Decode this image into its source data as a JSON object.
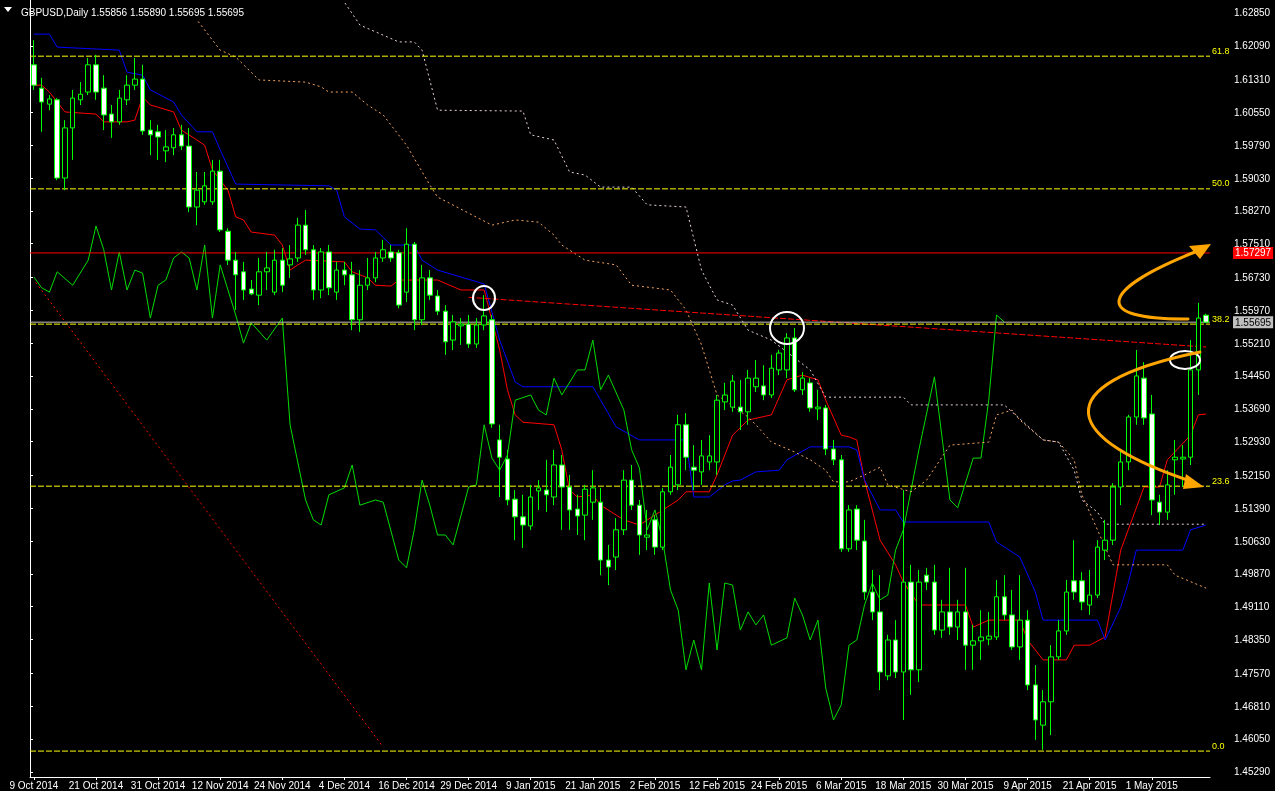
{
  "chart_data": {
    "type": "candlestick",
    "title": "GBPUSD,Daily 1.55856 1.55890 1.55695 1.55695",
    "color": "#00ff00",
    "marker": "none",
    "grid": false,
    "categories": [
      "9 Oct 2014",
      null,
      null,
      null,
      null,
      null,
      null,
      null,
      "21 Oct 2014",
      null,
      null,
      null,
      null,
      null,
      null,
      null,
      "31 Oct 2014",
      null,
      null,
      null,
      null,
      null,
      null,
      null,
      "12 Nov 2014",
      null,
      null,
      null,
      null,
      null,
      null,
      null,
      "24 Nov 2014",
      null,
      null,
      null,
      null,
      null,
      null,
      null,
      "4 Dec 2014",
      null,
      null,
      null,
      null,
      null,
      null,
      null,
      "16 Dec 2014",
      null,
      null,
      null,
      null,
      null,
      null,
      null,
      "29 Dec 2014",
      null,
      null,
      null,
      null,
      null,
      null,
      null,
      "9 Jan 2015",
      null,
      null,
      null,
      null,
      null,
      null,
      null,
      "21 Jan 2015",
      null,
      null,
      null,
      null,
      null,
      null,
      null,
      "2 Feb 2015",
      null,
      null,
      null,
      null,
      null,
      null,
      null,
      "12 Feb 2015",
      null,
      null,
      null,
      null,
      null,
      null,
      null,
      "24 Feb 2015",
      null,
      null,
      null,
      null,
      null,
      null,
      null,
      "6 Mar 2015",
      null,
      null,
      null,
      null,
      null,
      null,
      null,
      "18 Mar 2015",
      null,
      null,
      null,
      null,
      null,
      null,
      null,
      "30 Mar 2015",
      null,
      null,
      null,
      null,
      null,
      null,
      null,
      "9 Apr 2015",
      null,
      null,
      null,
      null,
      null,
      null,
      null,
      "21 Apr 2015",
      null,
      null,
      null,
      null,
      null,
      null,
      null,
      "1 May 2015",
      null,
      null,
      null,
      null,
      null,
      null,
      null
    ],
    "ohlc": [
      [
        1.6165,
        1.6222,
        1.6107,
        1.6118
      ],
      [
        1.6111,
        1.6135,
        1.601,
        1.6079
      ],
      [
        1.6074,
        1.6095,
        1.606,
        1.6086
      ],
      [
        1.6084,
        1.6088,
        1.5898,
        1.5903
      ],
      [
        1.5903,
        1.6037,
        1.5875,
        1.6019
      ],
      [
        1.6019,
        1.6107,
        1.5945,
        1.6088
      ],
      [
        1.6084,
        1.6125,
        1.6072,
        1.6097
      ],
      [
        1.6102,
        1.6181,
        1.6095,
        1.6165
      ],
      [
        1.6165,
        1.6188,
        1.6084,
        1.6102
      ],
      [
        1.6111,
        1.6141,
        1.6014,
        1.6049
      ],
      [
        1.6051,
        1.6072,
        1.5996,
        1.6033
      ],
      [
        1.6033,
        1.6107,
        1.6026,
        1.6088
      ],
      [
        1.6084,
        1.6141,
        1.6072,
        1.6118
      ],
      [
        1.6118,
        1.6181,
        1.6107,
        1.6132
      ],
      [
        1.6132,
        1.6165,
        1.6003,
        1.6012
      ],
      [
        1.6014,
        1.6037,
        1.5956,
        1.6003
      ],
      [
        1.601,
        1.6026,
        1.5945,
        1.5998
      ],
      [
        1.5966,
        1.6014,
        1.594,
        1.5975
      ],
      [
        1.5973,
        1.6019,
        1.5956,
        1.6003
      ],
      [
        1.6003,
        1.6026,
        1.5968,
        1.5977
      ],
      [
        1.5977,
        1.6019,
        1.5824,
        1.5836
      ],
      [
        1.5836,
        1.5917,
        1.5794,
        1.5875
      ],
      [
        1.5848,
        1.5917,
        1.5841,
        1.5885
      ],
      [
        1.5848,
        1.5945,
        1.5841,
        1.5919
      ],
      [
        1.5919,
        1.5945,
        1.5778,
        1.5783
      ],
      [
        1.578,
        1.5787,
        1.5702,
        1.5713
      ],
      [
        1.5713,
        1.5732,
        1.5598,
        1.5679
      ],
      [
        1.5686,
        1.5709,
        1.5621,
        1.5644
      ],
      [
        1.5646,
        1.5667,
        1.5632,
        1.5635
      ],
      [
        1.5632,
        1.5718,
        1.5609,
        1.5686
      ],
      [
        1.5686,
        1.5732,
        1.5644,
        1.5695
      ],
      [
        1.5639,
        1.5737,
        1.5632,
        1.5713
      ],
      [
        1.5713,
        1.5741,
        1.5639,
        1.5655
      ],
      [
        1.5702,
        1.5748,
        1.5672,
        1.5716
      ],
      [
        1.5718,
        1.5811,
        1.5709,
        1.5794
      ],
      [
        1.5794,
        1.5829,
        1.5725,
        1.5737
      ],
      [
        1.5737,
        1.5748,
        1.5621,
        1.5644
      ],
      [
        1.5644,
        1.5741,
        1.5625,
        1.5732
      ],
      [
        1.5732,
        1.5748,
        1.5632,
        1.5649
      ],
      [
        1.5639,
        1.5709,
        1.5621,
        1.569
      ],
      [
        1.569,
        1.5709,
        1.5655,
        1.5679
      ],
      [
        1.5679,
        1.5709,
        1.5551,
        1.5575
      ],
      [
        1.5575,
        1.569,
        1.5547,
        1.5655
      ],
      [
        1.5655,
        1.5718,
        1.5644,
        1.5672
      ],
      [
        1.5672,
        1.5732,
        1.5662,
        1.5718
      ],
      [
        1.5718,
        1.576,
        1.5709,
        1.5737
      ],
      [
        1.5732,
        1.5748,
        1.5709,
        1.5718
      ],
      [
        1.573,
        1.5737,
        1.5602,
        1.5609
      ],
      [
        1.5639,
        1.5787,
        1.5616,
        1.575
      ],
      [
        1.575,
        1.5755,
        1.5551,
        1.5575
      ],
      [
        1.5575,
        1.5702,
        1.5563,
        1.5672
      ],
      [
        1.5672,
        1.569,
        1.5621,
        1.5632
      ],
      [
        1.563,
        1.5644,
        1.5586,
        1.5595
      ],
      [
        1.5595,
        1.5609,
        1.5494,
        1.5524
      ],
      [
        1.5528,
        1.5586,
        1.5505,
        1.557
      ],
      [
        1.5561,
        1.5579,
        1.5517,
        1.5565
      ],
      [
        1.5565,
        1.5586,
        1.551,
        1.5519
      ],
      [
        1.5519,
        1.5579,
        1.551,
        1.5563
      ],
      [
        1.5563,
        1.5632,
        1.5551,
        1.5584
      ],
      [
        1.5575,
        1.5586,
        1.5325,
        1.5334
      ],
      [
        1.5297,
        1.5332,
        1.5165,
        1.5257
      ],
      [
        1.5253,
        1.5274,
        1.5146,
        1.5158
      ],
      [
        1.516,
        1.5181,
        1.5065,
        1.5119
      ],
      [
        1.5119,
        1.517,
        1.5047,
        1.51
      ],
      [
        1.5098,
        1.5193,
        1.5089,
        1.5165
      ],
      [
        1.5179,
        1.5204,
        1.5135,
        1.5186
      ],
      [
        1.5181,
        1.5251,
        1.513,
        1.517
      ],
      [
        1.5165,
        1.5274,
        1.5146,
        1.5239
      ],
      [
        1.5239,
        1.5262,
        1.5089,
        1.5188
      ],
      [
        1.5188,
        1.5216,
        1.5089,
        1.5135
      ],
      [
        1.5137,
        1.517,
        1.5077,
        1.5121
      ],
      [
        1.5123,
        1.5193,
        1.5065,
        1.5183
      ],
      [
        1.5153,
        1.5227,
        1.5112,
        1.5186
      ],
      [
        1.5153,
        1.5186,
        1.4984,
        1.5019
      ],
      [
        1.5019,
        1.5054,
        1.4961,
        1.5003
      ],
      [
        1.5026,
        1.5116,
        1.4996,
        1.5089
      ],
      [
        1.5089,
        1.5227,
        1.5077,
        1.5204
      ],
      [
        1.5204,
        1.5239,
        1.5135,
        1.5146
      ],
      [
        1.5146,
        1.5158,
        1.5031,
        1.5077
      ],
      [
        1.5072,
        1.5135,
        1.5042,
        1.5077
      ],
      [
        1.5112,
        1.5123,
        1.5031,
        1.5049
      ],
      [
        1.5049,
        1.5186,
        1.5042,
        1.5177
      ],
      [
        1.5177,
        1.5262,
        1.517,
        1.5234
      ],
      [
        1.5193,
        1.5355,
        1.5181,
        1.5332
      ],
      [
        1.5332,
        1.5359,
        1.5227,
        1.5257
      ],
      [
        1.5234,
        1.5285,
        1.5181,
        1.5227
      ],
      [
        1.5223,
        1.5297,
        1.5193,
        1.526
      ],
      [
        1.5246,
        1.5308,
        1.5227,
        1.526
      ],
      [
        1.5246,
        1.5401,
        1.5216,
        1.5389
      ],
      [
        1.5385,
        1.5429,
        1.5366,
        1.5401
      ],
      [
        1.5373,
        1.5447,
        1.5362,
        1.5433
      ],
      [
        1.5373,
        1.5436,
        1.532,
        1.5362
      ],
      [
        1.5362,
        1.5459,
        1.5332,
        1.544
      ],
      [
        1.542,
        1.5482,
        1.5408,
        1.544
      ],
      [
        1.5422,
        1.547,
        1.5389,
        1.5401
      ],
      [
        1.5401,
        1.5494,
        1.5394,
        1.5463
      ],
      [
        1.5459,
        1.5505,
        1.5447,
        1.5498
      ],
      [
        1.5459,
        1.5544,
        1.544,
        1.5533
      ],
      [
        1.5533,
        1.5556,
        1.5408,
        1.5413
      ],
      [
        1.5413,
        1.5454,
        1.5401,
        1.544
      ],
      [
        1.5429,
        1.544,
        1.5362,
        1.5371
      ],
      [
        1.5369,
        1.5413,
        1.5343,
        1.5373
      ],
      [
        1.5371,
        1.5378,
        1.5262,
        1.5276
      ],
      [
        1.5276,
        1.5297,
        1.5239,
        1.5251
      ],
      [
        1.5251,
        1.5262,
        1.5038,
        1.5045
      ],
      [
        1.5045,
        1.5146,
        1.5038,
        1.5135
      ],
      [
        1.5137,
        1.5146,
        1.5042,
        1.5065
      ],
      [
        1.5063,
        1.5112,
        1.4927,
        1.4945
      ],
      [
        1.4945,
        1.4996,
        1.488,
        1.4899
      ],
      [
        1.4899,
        1.4984,
        1.4718,
        1.476
      ],
      [
        1.4751,
        1.4846,
        1.4741,
        1.4834
      ],
      [
        1.4834,
        1.488,
        1.4746,
        1.476
      ],
      [
        1.476,
        1.5181,
        1.4649,
        1.4968
      ],
      [
        1.4968,
        1.5008,
        1.4707,
        1.4765
      ],
      [
        1.4765,
        1.4996,
        1.4737,
        1.4968
      ],
      [
        1.4984,
        1.5001,
        1.495,
        1.4968
      ],
      [
        1.4968,
        1.5008,
        1.4846,
        1.4857
      ],
      [
        1.4857,
        1.4927,
        1.4839,
        1.4899
      ],
      [
        1.4899,
        1.5001,
        1.4846,
        1.4864
      ],
      [
        1.4864,
        1.4927,
        1.4834,
        1.4899
      ],
      [
        1.4899,
        1.5001,
        1.4765,
        1.4822
      ],
      [
        1.4822,
        1.4869,
        1.4765,
        1.4832
      ],
      [
        1.4832,
        1.4903,
        1.4788,
        1.4841
      ],
      [
        1.4836,
        1.4899,
        1.4822,
        1.4843
      ],
      [
        1.4841,
        1.4973,
        1.4834,
        1.4934
      ],
      [
        1.4934,
        1.4984,
        1.488,
        1.4892
      ],
      [
        1.4892,
        1.495,
        1.4811,
        1.4818
      ],
      [
        1.4818,
        1.4984,
        1.4788,
        1.488
      ],
      [
        1.488,
        1.4903,
        1.4718,
        1.473
      ],
      [
        1.473,
        1.4776,
        1.4603,
        1.4649
      ],
      [
        1.4637,
        1.4718,
        1.458,
        1.4691
      ],
      [
        1.4691,
        1.4822,
        1.4614,
        1.4795
      ],
      [
        1.4795,
        1.488,
        1.4788,
        1.4855
      ],
      [
        1.4855,
        1.4973,
        1.4846,
        1.4945
      ],
      [
        1.4971,
        1.5065,
        1.4927,
        1.4945
      ],
      [
        1.4971,
        1.4991,
        1.4903,
        1.4922
      ],
      [
        1.4915,
        1.4996,
        1.4892,
        1.4938
      ],
      [
        1.4938,
        1.5065,
        1.4931,
        1.5049
      ],
      [
        1.5042,
        1.5112,
        1.5019,
        1.5065
      ],
      [
        1.5065,
        1.5197,
        1.5054,
        1.5188
      ],
      [
        1.5188,
        1.5269,
        1.5146,
        1.5246
      ],
      [
        1.5246,
        1.5355,
        1.5227,
        1.535
      ],
      [
        1.535,
        1.5505,
        1.5332,
        1.5445
      ],
      [
        1.544,
        1.5477,
        1.5332,
        1.5348
      ],
      [
        1.5357,
        1.5401,
        1.5123,
        1.5158
      ],
      [
        1.5153,
        1.517,
        1.51,
        1.513
      ],
      [
        1.513,
        1.5227,
        1.5112,
        1.5193
      ],
      [
        1.5251,
        1.5297,
        1.517,
        1.5257
      ],
      [
        1.5253,
        1.5285,
        1.5188,
        1.5257
      ],
      [
        1.5257,
        1.5528,
        1.5239,
        1.5459
      ],
      [
        1.5459,
        1.5614,
        1.5401,
        1.5579
      ],
      [
        1.55856,
        1.5589,
        1.55695,
        1.55695
      ]
    ],
    "series": [
      {
        "type": "line",
        "color": "#ff0000",
        "values": [
          1.6118,
          1.6118,
          1.6102,
          null,
          1.6056,
          null,
          null,
          null,
          1.6051,
          1.6033,
          null,
          null,
          1.6033,
          1.6037,
          1.6091,
          1.6072,
          1.6067,
          null,
          1.6056,
          1.6014,
          null,
          1.5991,
          1.5979,
          1.5922,
          null,
          1.5875,
          1.5813,
          1.5806,
          1.5778,
          null,
          null,
          1.5771,
          1.5748,
          1.569,
          1.5702,
          1.5713,
          null,
          null,
          null,
          null,
          1.5709,
          1.5686,
          null,
          1.5672,
          1.5655,
          null,
          1.5653,
          1.5667,
          null,
          null,
          null,
          null,
          1.5667,
          null,
          null,
          1.5644,
          null,
          null,
          1.5644,
          null,
          1.5505,
          1.5413,
          1.5355,
          1.5338,
          null,
          null,
          null,
          1.5332,
          1.5274,
          1.5181,
          1.5165,
          null,
          1.517,
          1.5146,
          null,
          null,
          1.5112,
          null,
          1.51,
          null,
          null,
          null,
          null,
          1.5158,
          1.5177,
          null,
          null,
          1.5177,
          1.5216,
          null,
          1.5308,
          null,
          1.5343,
          null,
          null,
          1.5355,
          null,
          1.5436,
          null,
          1.5447,
          null,
          1.5436,
          1.5389,
          null,
          1.5308,
          1.5304,
          1.5297,
          1.5204,
          null,
          1.5065,
          null,
          1.5008,
          1.4968,
          null,
          1.4915,
          null,
          null,
          null,
          null,
          null,
          1.4915,
          1.4864,
          null,
          1.488,
          null,
          null,
          null,
          1.488,
          1.4834,
          null,
          1.4788,
          null,
          null,
          1.4788,
          1.4822,
          null,
          1.4822,
          null,
          1.4841,
          null,
          1.5042,
          null,
          null,
          1.5188,
          null,
          1.5188,
          1.5251,
          null,
          null,
          1.5308,
          1.5355,
          1.5357
        ]
      },
      {
        "type": "line",
        "color": "#0000ff",
        "values": [
          1.6236,
          null,
          1.6236,
          1.6206,
          null,
          null,
          null,
          null,
          null,
          null,
          null,
          1.6199,
          1.6148,
          null,
          1.6141,
          1.6107,
          null,
          null,
          1.6079,
          1.6049,
          null,
          1.601,
          null,
          1.601,
          1.5968,
          null,
          1.5889,
          null,
          null,
          null,
          null,
          null,
          null,
          null,
          null,
          null,
          null,
          null,
          1.5885,
          1.5875,
          1.5813,
          null,
          1.5785,
          null,
          1.5783,
          null,
          1.5748,
          null,
          null,
          1.5748,
          1.5713,
          null,
          1.569,
          null,
          null,
          null,
          null,
          null,
          1.5658,
          null,
          1.5528,
          null,
          1.5431,
          1.542,
          null,
          null,
          null,
          null,
          null,
          null,
          null,
          null,
          1.542,
          null,
          null,
          1.5327,
          null,
          null,
          1.5297,
          null,
          null,
          null,
          null,
          null,
          1.5297,
          1.5165,
          null,
          1.5165,
          null,
          1.5193,
          1.5202,
          1.5204,
          null,
          1.5223,
          null,
          null,
          1.5227,
          1.5251,
          null,
          null,
          1.5281,
          null,
          null,
          null,
          null,
          1.5281,
          1.5274,
          1.5204,
          null,
          1.5135,
          null,
          1.5135,
          1.5107,
          null,
          null,
          null,
          null,
          null,
          null,
          null,
          null,
          null,
          null,
          1.5107,
          1.5061,
          null,
          null,
          1.5026,
          null,
          1.4945,
          1.488,
          null,
          null,
          null,
          null,
          null,
          null,
          1.488,
          1.4834,
          null,
          1.491,
          1.4968,
          1.5042,
          null,
          null,
          null,
          null,
          null,
          1.5042,
          1.5089,
          null,
          1.51
        ]
      },
      {
        "type": "line",
        "color": "#00dd00",
        "values": [
          1.5674,
          1.5649,
          1.5639,
          1.5686,
          null,
          1.5655,
          null,
          1.5713,
          1.5792,
          1.5737,
          1.5644,
          1.5732,
          1.5644,
          1.569,
          1.5683,
          1.5579,
          1.5655,
          1.5667,
          1.5718,
          1.5732,
          1.5718,
          1.5644,
          1.5748,
          1.5579,
          1.5702,
          null,
          1.5586,
          1.5521,
          1.5568,
          null,
          1.5528,
          null,
          1.5579,
          1.5332,
          null,
          1.5158,
          1.5112,
          1.51,
          1.517,
          null,
          1.5186,
          1.5239,
          1.5146,
          null,
          1.5158,
          1.5153,
          null,
          1.5019,
          1.5001,
          1.5089,
          1.5204,
          1.5146,
          1.5077,
          1.5077,
          1.5054,
          null,
          1.5188,
          1.5193,
          1.5332,
          1.5255,
          1.5227,
          1.5262,
          1.5389,
          null,
          1.5401,
          1.5366,
          1.5355,
          1.544,
          1.5401,
          null,
          1.5459,
          1.5459,
          1.5528,
          1.5413,
          1.5447,
          null,
          1.5366,
          1.5274,
          1.5232,
          1.5089,
          1.5135,
          1.5065,
          1.495,
          1.4903,
          1.4765,
          1.4834,
          1.4765,
          1.4966,
          1.4811,
          1.4966,
          1.4961,
          1.4857,
          1.4899,
          1.4869,
          1.4892,
          1.4822,
          null,
          1.4839,
          1.4931,
          1.4892,
          1.4834,
          1.488,
          1.4723,
          1.4649,
          1.4684,
          1.4822,
          1.4834,
          1.4915,
          1.4966,
          1.4927,
          1.4938,
          1.5042,
          1.5089,
          null,
          1.5274,
          null,
          1.5443,
          null,
          1.5158,
          1.514,
          null,
          1.5255,
          1.5255,
          1.5389,
          1.5586,
          1.557,
          null,
          null,
          null,
          null,
          null,
          null,
          null,
          null,
          null,
          null,
          null,
          null,
          null,
          null,
          null,
          null,
          null,
          null,
          null,
          null,
          null,
          null,
          null,
          null,
          null,
          null
        ]
      },
      {
        "type": "line",
        "color": "#f4a460",
        "line_style": "dotted",
        "values": [
          null,
          null,
          null,
          null,
          null,
          null,
          null,
          null,
          null,
          null,
          null,
          null,
          null,
          null,
          null,
          null,
          null,
          null,
          null,
          null,
          null,
          1.6269,
          null,
          null,
          1.6199,
          null,
          1.6183,
          null,
          null,
          1.613,
          null,
          null,
          null,
          null,
          null,
          1.6125,
          null,
          1.6114,
          1.6102,
          null,
          null,
          1.6102,
          null,
          1.6072,
          null,
          1.6049,
          null,
          null,
          1.5979,
          null,
          null,
          1.5887,
          1.5859,
          null,
          null,
          null,
          null,
          null,
          null,
          1.5794,
          null,
          null,
          1.5806,
          null,
          null,
          1.5801,
          null,
          1.5771,
          1.5748,
          null,
          null,
          1.5713,
          null,
          null,
          null,
          1.5702,
          null,
          1.5655,
          null,
          null,
          null,
          null,
          1.5644,
          null,
          1.5598,
          null,
          1.5517,
          null,
          1.5401,
          null,
          null,
          null,
          1.535,
          1.5332,
          null,
          1.5292,
          null,
          null,
          1.5269,
          null,
          1.5251,
          null,
          1.5227,
          1.52,
          null,
          1.52,
          null,
          1.5216,
          null,
          1.5234,
          1.5193,
          null,
          null,
          1.5177,
          null,
          1.5204,
          null,
          null,
          1.5285,
          null,
          null,
          null,
          null,
          1.5292,
          1.5355,
          null,
          1.5366,
          1.5343,
          null,
          null,
          1.5297,
          null,
          1.5292,
          null,
          1.5251,
          1.517,
          null,
          1.5089,
          null,
          1.5008,
          null,
          null,
          null,
          null,
          null,
          null,
          1.5008,
          1.4984,
          null,
          null,
          null,
          1.4954
        ]
      },
      {
        "type": "line",
        "color": "#e8d0e0",
        "line_style": "dotted",
        "values": [
          null,
          null,
          null,
          null,
          null,
          null,
          null,
          null,
          null,
          null,
          null,
          null,
          null,
          null,
          null,
          null,
          null,
          null,
          null,
          null,
          null,
          null,
          null,
          null,
          null,
          null,
          null,
          null,
          null,
          null,
          null,
          null,
          null,
          null,
          null,
          null,
          null,
          null,
          null,
          null,
          1.631,
          null,
          1.6257,
          null,
          null,
          null,
          null,
          1.6218,
          null,
          1.6218,
          1.6199,
          null,
          1.606,
          null,
          null,
          null,
          null,
          null,
          null,
          null,
          null,
          null,
          null,
          1.6058,
          1.6003,
          null,
          null,
          1.5991,
          null,
          1.5917,
          null,
          1.591,
          null,
          1.5882,
          null,
          null,
          null,
          1.5882,
          null,
          1.5841,
          null,
          null,
          null,
          null,
          1.5836,
          null,
          1.569,
          null,
          1.5621,
          null,
          1.5609,
          null,
          1.5551,
          null,
          null,
          1.5528,
          null,
          null,
          null,
          null,
          1.5459,
          null,
          1.5396,
          null,
          null,
          null,
          null,
          null,
          null,
          null,
          null,
          null,
          1.5396,
          1.5378,
          null,
          null,
          null,
          null,
          null,
          null,
          null,
          null,
          null,
          null,
          null,
          1.5378,
          1.5362,
          null,
          null,
          null,
          1.5297,
          null,
          1.5292,
          null,
          1.5227,
          1.5158,
          null,
          1.513,
          1.5102,
          null,
          null,
          null,
          null,
          null,
          null,
          null,
          null,
          null,
          null,
          null,
          null,
          1.5102
        ]
      },
      {
        "type": "line",
        "color": "#ff0000",
        "line_style": "dashed",
        "values": [
          null,
          null,
          null,
          null,
          null,
          null,
          null,
          null,
          null,
          null,
          null,
          null,
          null,
          null,
          null,
          null,
          null,
          null,
          null,
          null,
          null,
          null,
          null,
          null,
          null,
          null,
          null,
          null,
          null,
          null,
          null,
          null,
          null,
          null,
          null,
          null,
          null,
          null,
          null,
          null,
          null,
          null,
          null,
          null,
          null,
          null,
          null,
          null,
          null,
          null,
          null,
          null,
          null,
          null,
          null,
          null,
          1.5627,
          null,
          null,
          null,
          null,
          null,
          null,
          null,
          null,
          null,
          null,
          null,
          null,
          null,
          null,
          null,
          null,
          null,
          null,
          null,
          null,
          null,
          null,
          null,
          null,
          null,
          null,
          null,
          null,
          null,
          null,
          null,
          null,
          null,
          null,
          null,
          null,
          null,
          null,
          null,
          null,
          null,
          null,
          null,
          null,
          null,
          null,
          null,
          null,
          null,
          null,
          null,
          null,
          null,
          null,
          null,
          null,
          null,
          null,
          null,
          null,
          null,
          null,
          null,
          null,
          null,
          null,
          null,
          null,
          null,
          null,
          null,
          null,
          null,
          null,
          null,
          null,
          null,
          null,
          null,
          null,
          null,
          null,
          null,
          null,
          null,
          null,
          null,
          null,
          null,
          null,
          null,
          null,
          null,
          null,
          1.5512
        ]
      },
      {
        "type": "line",
        "color": "#ff0000",
        "line_style": "dotted",
        "values": [
          1.5667,
          null,
          null,
          null,
          null,
          null,
          null,
          null,
          null,
          null,
          null,
          null,
          null,
          null,
          null,
          null,
          null,
          null,
          null,
          null,
          null,
          null,
          null,
          null,
          null,
          null,
          null,
          null,
          null,
          null,
          null,
          null,
          null,
          null,
          null,
          null,
          null,
          null,
          null,
          null,
          null,
          null,
          null,
          null,
          null,
          1.4586,
          null,
          null,
          null,
          null,
          null,
          null,
          null,
          null,
          null,
          null,
          null,
          null,
          null,
          null,
          null,
          null,
          null,
          null,
          null,
          null,
          null,
          null,
          null,
          null,
          null,
          null,
          null,
          null,
          null,
          null,
          null,
          null,
          null,
          null,
          null,
          null,
          null,
          null,
          null,
          null,
          null,
          null,
          null,
          null,
          null,
          null,
          null,
          null,
          null,
          null,
          null,
          null,
          null,
          null,
          null,
          null,
          null,
          null,
          null,
          null,
          null,
          null,
          null,
          null,
          null,
          null,
          null,
          null,
          null,
          null,
          null,
          null,
          null,
          null,
          null,
          null,
          null,
          null,
          null,
          null,
          null,
          null,
          null,
          null,
          null,
          null,
          null,
          null,
          null,
          null,
          null,
          null,
          null,
          null,
          null,
          null,
          null,
          null,
          null,
          null,
          null,
          null,
          null,
          null,
          null,
          null
        ]
      }
    ],
    "ylim": [
      1.4517,
      1.6315
    ],
    "yticks": [
      {
        "value": 1.6285,
        "label": "1.62850"
      },
      {
        "value": 1.6209,
        "label": "1.62090"
      },
      {
        "value": 1.6131,
        "label": "1.61310"
      },
      {
        "value": 1.6055,
        "label": "1.60550"
      },
      {
        "value": 1.5979,
        "label": "1.59790"
      },
      {
        "value": 1.5903,
        "label": "1.59030"
      },
      {
        "value": 1.5827,
        "label": "1.58270"
      },
      {
        "value": 1.5751,
        "label": "1.57510"
      },
      {
        "value": 1.5673,
        "label": "1.56730"
      },
      {
        "value": 1.5597,
        "label": "1.55970"
      },
      {
        "value": 1.5521,
        "label": "1.55210"
      },
      {
        "value": 1.5445,
        "label": "1.54450"
      },
      {
        "value": 1.5369,
        "label": "1.53690"
      },
      {
        "value": 1.5293,
        "label": "1.52930"
      },
      {
        "value": 1.5215,
        "label": "1.52150"
      },
      {
        "value": 1.5139,
        "label": "1.51390"
      },
      {
        "value": 1.5063,
        "label": "1.50630"
      },
      {
        "value": 1.4987,
        "label": "1.49870"
      },
      {
        "value": 1.4911,
        "label": "1.49110"
      },
      {
        "value": 1.4835,
        "label": "1.48350"
      },
      {
        "value": 1.4757,
        "label": "1.47570"
      },
      {
        "value": 1.4681,
        "label": "1.46810"
      },
      {
        "value": 1.4605,
        "label": "1.46050"
      },
      {
        "value": 1.4529,
        "label": "1.45290"
      }
    ],
    "ref_lines": [
      {
        "axis": "y",
        "value": 1.6185,
        "color": "#ffff00",
        "line_style": "dashed"
      },
      {
        "axis": "y",
        "value": 1.5878,
        "color": "#ffff00",
        "line_style": "dashed"
      },
      {
        "axis": "y",
        "value": 1.5565,
        "color": "#ffff00",
        "line_style": "dashed"
      },
      {
        "axis": "y",
        "value": 1.519,
        "color": "#ffff00",
        "line_style": "dashed"
      },
      {
        "axis": "y",
        "value": 1.4577,
        "color": "#ffff00",
        "line_style": "dashed"
      },
      {
        "axis": "y",
        "value": 1.57297,
        "label": "1.57297",
        "color": "#ff0000",
        "line_style": "solid"
      },
      {
        "axis": "y",
        "value": 1.55695,
        "label": "1.55695",
        "color": "#c0c0c0",
        "line_style": "solid"
      }
    ],
    "annotations": [
      "61.8",
      "50.0",
      "38.2",
      "23.6",
      "0.0"
    ]
  }
}
